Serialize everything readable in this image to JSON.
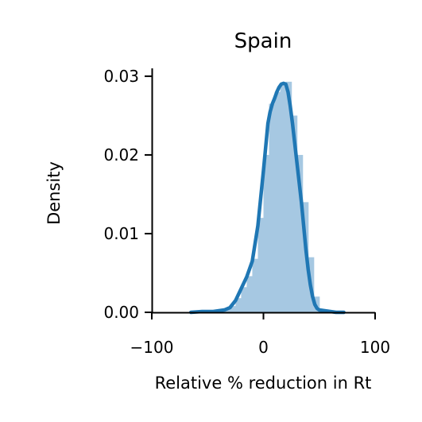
{
  "chart_data": {
    "type": "area",
    "title": "Spain",
    "xlabel": "Relative % reduction in Rt",
    "ylabel": "Density",
    "xlim": [
      -100,
      100
    ],
    "ylim": [
      0,
      0.031
    ],
    "x_ticks": [
      -100,
      0,
      100
    ],
    "x_tick_labels": [
      "−100",
      "0",
      "100"
    ],
    "y_ticks": [
      0,
      0.01,
      0.02,
      0.03
    ],
    "y_tick_labels": [
      "0.00",
      "0.01",
      "0.02",
      "0.03"
    ],
    "grid": false,
    "colors": {
      "line": "#1f77b4",
      "fill": "#a6c8e2"
    },
    "series": [
      {
        "kind": "kde",
        "x": [
          -65,
          -55,
          -45,
          -35,
          -30,
          -25,
          -20,
          -15,
          -10,
          -5,
          0,
          2,
          4,
          6,
          8,
          10,
          12,
          14,
          16,
          18,
          20,
          22,
          24,
          26,
          28,
          30,
          32,
          34,
          36,
          38,
          40,
          42,
          44,
          46,
          48,
          50,
          55,
          60,
          65,
          72
        ],
        "y": [
          0.0,
          0.0001,
          0.0001,
          0.0003,
          0.0006,
          0.0015,
          0.003,
          0.0045,
          0.0065,
          0.011,
          0.018,
          0.021,
          0.024,
          0.0255,
          0.0265,
          0.0272,
          0.028,
          0.0286,
          0.029,
          0.0291,
          0.029,
          0.028,
          0.0262,
          0.024,
          0.0215,
          0.019,
          0.0165,
          0.014,
          0.011,
          0.008,
          0.0055,
          0.0035,
          0.002,
          0.001,
          0.0005,
          0.0003,
          0.0002,
          0.0001,
          0.0,
          0.0
        ]
      }
    ],
    "histogram": {
      "bin_edges": [
        -35,
        -30,
        -25,
        -20,
        -15,
        -10,
        -5,
        0,
        5,
        10,
        15,
        20,
        25,
        30,
        35,
        40,
        45,
        50
      ],
      "density": [
        0.0004,
        0.0008,
        0.0018,
        0.0032,
        0.0046,
        0.0068,
        0.012,
        0.02,
        0.0265,
        0.028,
        0.0292,
        0.0293,
        0.025,
        0.02,
        0.014,
        0.007,
        0.002
      ]
    }
  }
}
